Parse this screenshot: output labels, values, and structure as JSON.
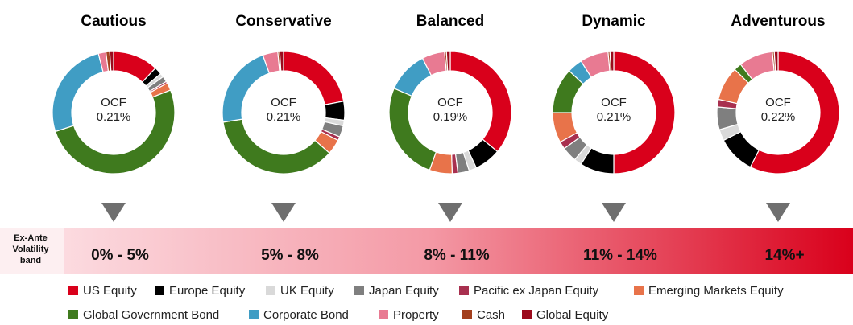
{
  "chart_data": [
    {
      "type": "donut",
      "title": "Cautious",
      "center_label": "OCF",
      "center_value": "0.21%",
      "values": [
        12,
        2,
        1,
        1.5,
        0.5,
        2,
        51,
        26,
        2,
        1,
        1
      ]
    },
    {
      "type": "donut",
      "title": "Conservative",
      "center_label": "OCF",
      "center_value": "0.21%",
      "values": [
        22,
        5,
        1.5,
        3,
        1,
        4,
        36,
        22,
        4,
        0.5,
        1
      ]
    },
    {
      "type": "donut",
      "title": "Balanced",
      "center_label": "OCF",
      "center_value": "0.19%",
      "values": [
        36,
        7,
        2,
        3,
        1.5,
        6,
        26,
        11,
        6,
        0.5,
        1
      ]
    },
    {
      "type": "donut",
      "title": "Dynamic",
      "center_label": "OCF",
      "center_value": "0.21%",
      "values": [
        50,
        9,
        2,
        4,
        2,
        8,
        12,
        4,
        7.5,
        0.5,
        1
      ]
    },
    {
      "type": "donut",
      "title": "Adventurous",
      "center_label": "OCF",
      "center_value": "0.22%",
      "values": [
        57.5,
        10,
        3,
        6,
        2,
        9,
        2,
        0,
        9,
        0.5,
        1
      ]
    }
  ],
  "legend": {
    "categories": [
      "US Equity",
      "Europe Equity",
      "UK Equity",
      "Japan Equity",
      "Pacific ex Japan Equity",
      "Emerging Markets Equity",
      "Global Government Bond",
      "Corporate Bond",
      "Property",
      "Cash",
      "Global Equity"
    ],
    "colors": [
      "#d9001b",
      "#000000",
      "#d9d9d9",
      "#7f7f7f",
      "#a8304f",
      "#e8734a",
      "#3f7a1e",
      "#409dc4",
      "#e87a92",
      "#a23f1d",
      "#9b0a1c"
    ]
  },
  "volatility": {
    "label": "Ex-Ante Volatility band",
    "bands": [
      "0% - 5%",
      "5% - 8%",
      "8% - 11%",
      "11% - 14%",
      "14%+"
    ]
  }
}
